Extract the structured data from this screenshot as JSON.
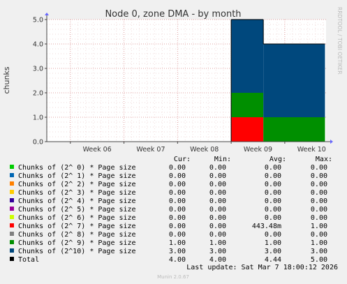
{
  "chart_data": {
    "type": "area",
    "title": "Node 0, zone DMA - by month",
    "ylabel": "chunks",
    "xlabel": "",
    "side_label": "RRDTOOL / TOBI OETIKER",
    "footer": "Munin 2.0.67",
    "last_update": "Last update: Sat Mar  7 18:00:12 2026",
    "ylim": [
      0,
      5
    ],
    "yticks": [
      "0.0",
      "1.0",
      "2.0",
      "3.0",
      "4.0",
      "5.0"
    ],
    "xticks": [
      "Week 06",
      "Week 07",
      "Week 08",
      "Week 09",
      "Week 10"
    ],
    "grid": true,
    "stack_segments": [
      {
        "from_week": 9.0,
        "to_week": 9.6,
        "values": {
          "Chunks of (2^ 7) * Page size": 1,
          "Chunks of (2^ 9) * Page size": 1,
          "Chunks of (2^10) * Page size": 3
        }
      },
      {
        "from_week": 9.6,
        "to_week": 10.75,
        "values": {
          "Chunks of (2^ 7) * Page size": 0,
          "Chunks of (2^ 9) * Page size": 1,
          "Chunks of (2^10) * Page size": 3
        }
      }
    ],
    "legend_headers": [
      "Cur:",
      "Min:",
      "Avg:",
      "Max:"
    ],
    "series": [
      {
        "name": "Chunks of (2^ 0) * Page size",
        "color": "#00cc00",
        "cur": "0.00",
        "min": "0.00",
        "avg": "0.00",
        "max": "0.00"
      },
      {
        "name": "Chunks of (2^ 1) * Page size",
        "color": "#0066b3",
        "cur": "0.00",
        "min": "0.00",
        "avg": "0.00",
        "max": "0.00"
      },
      {
        "name": "Chunks of (2^ 2) * Page size",
        "color": "#ff8000",
        "cur": "0.00",
        "min": "0.00",
        "avg": "0.00",
        "max": "0.00"
      },
      {
        "name": "Chunks of (2^ 3) * Page size",
        "color": "#ffcc00",
        "cur": "0.00",
        "min": "0.00",
        "avg": "0.00",
        "max": "0.00"
      },
      {
        "name": "Chunks of (2^ 4) * Page size",
        "color": "#330099",
        "cur": "0.00",
        "min": "0.00",
        "avg": "0.00",
        "max": "0.00"
      },
      {
        "name": "Chunks of (2^ 5) * Page size",
        "color": "#990099",
        "cur": "0.00",
        "min": "0.00",
        "avg": "0.00",
        "max": "0.00"
      },
      {
        "name": "Chunks of (2^ 6) * Page size",
        "color": "#ccff00",
        "cur": "0.00",
        "min": "0.00",
        "avg": "0.00",
        "max": "0.00"
      },
      {
        "name": "Chunks of (2^ 7) * Page size",
        "color": "#ff0000",
        "cur": "0.00",
        "min": "0.00",
        "avg": "443.48m",
        "max": "1.00"
      },
      {
        "name": "Chunks of (2^ 8) * Page size",
        "color": "#808080",
        "cur": "0.00",
        "min": "0.00",
        "avg": "0.00",
        "max": "0.00"
      },
      {
        "name": "Chunks of (2^ 9) * Page size",
        "color": "#008f00",
        "cur": "1.00",
        "min": "1.00",
        "avg": "1.00",
        "max": "1.00"
      },
      {
        "name": "Chunks of (2^10) * Page size",
        "color": "#00487d",
        "cur": "3.00",
        "min": "3.00",
        "avg": "3.00",
        "max": "3.00"
      },
      {
        "name": "Total",
        "color": "#000000",
        "cur": "4.00",
        "min": "4.00",
        "avg": "4.44",
        "max": "5.00"
      }
    ]
  }
}
